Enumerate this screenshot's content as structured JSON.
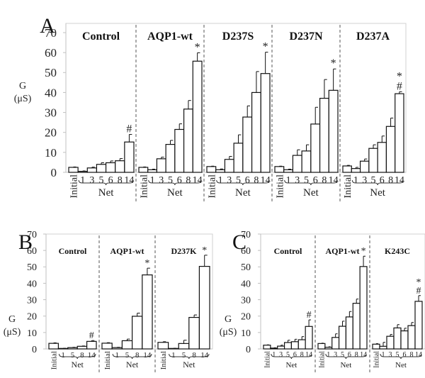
{
  "chart_data": [
    {
      "panel": "A",
      "type": "bar",
      "ylabel": "G (μS)",
      "ylim": [
        0,
        70
      ],
      "yticks": [
        0,
        10,
        20,
        30,
        40,
        50,
        60,
        70
      ],
      "categories": [
        "Initial",
        "1",
        "3",
        "5",
        "6",
        "8",
        "14"
      ],
      "bracket_label": "Net",
      "groups": [
        {
          "name": "Control",
          "values": [
            2.5,
            0.5,
            2.2,
            4.0,
            4.8,
            5.8,
            15.2
          ],
          "errors": [
            0.2,
            0.2,
            0.4,
            0.8,
            0.9,
            1.1,
            3.8
          ],
          "annotation": "#"
        },
        {
          "name": "AQP1-wt",
          "values": [
            2.5,
            1.3,
            6.8,
            14.0,
            21.5,
            31.7,
            55.7
          ],
          "errors": [
            0.2,
            0.3,
            0.8,
            2.0,
            2.8,
            4.3,
            4.2
          ],
          "annotation": "*"
        },
        {
          "name": "D237S",
          "values": [
            2.9,
            1.3,
            6.5,
            14.6,
            27.7,
            40.0,
            49.5
          ],
          "errors": [
            0.2,
            0.4,
            1.5,
            4.2,
            5.6,
            10.5,
            10.7
          ],
          "annotation": "*"
        },
        {
          "name": "D237N",
          "values": [
            2.9,
            1.3,
            8.5,
            10.7,
            24.2,
            37.1,
            41.1
          ],
          "errors": [
            0.2,
            0.3,
            2.8,
            3.1,
            8.4,
            9.4,
            10.7
          ],
          "annotation": "*"
        },
        {
          "name": "D237A",
          "values": [
            3.2,
            1.9,
            5.6,
            12.0,
            15.0,
            23.0,
            39.4
          ],
          "errors": [
            0.3,
            0.6,
            1.1,
            1.8,
            3.2,
            4.2,
            1.0
          ],
          "annotation": "*\n#"
        }
      ]
    },
    {
      "panel": "B",
      "type": "bar",
      "ylabel": "G (μS)",
      "ylim": [
        0,
        70
      ],
      "yticks": [
        0,
        10,
        20,
        30,
        40,
        50,
        60,
        70
      ],
      "categories": [
        "Initial",
        "1",
        "5",
        "8",
        "14"
      ],
      "bracket_label": "Net",
      "groups": [
        {
          "name": "Control",
          "values": [
            3.4,
            0.3,
            0.8,
            1.6,
            4.6
          ],
          "errors": [
            0.3,
            0.1,
            0.2,
            0.2,
            0.5
          ],
          "annotation": "#"
        },
        {
          "name": "AQP1-wt",
          "values": [
            3.5,
            0.8,
            5.0,
            19.9,
            45.1
          ],
          "errors": [
            0.3,
            0.2,
            1.0,
            1.9,
            4.1
          ],
          "annotation": "*"
        },
        {
          "name": "D237K",
          "values": [
            4.0,
            0.3,
            3.3,
            19.2,
            50.3
          ],
          "errors": [
            0.4,
            0.1,
            2.0,
            1.5,
            6.8
          ],
          "annotation": "*"
        }
      ]
    },
    {
      "panel": "C",
      "type": "bar",
      "ylabel": "G (μS)",
      "ylim": [
        0,
        70
      ],
      "yticks": [
        0,
        10,
        20,
        30,
        40,
        50,
        60,
        70
      ],
      "categories": [
        "Initial",
        "1",
        "3",
        "5",
        "6",
        "8",
        "14"
      ],
      "bracket_label": "Net",
      "groups": [
        {
          "name": "Control",
          "values": [
            2.3,
            0.5,
            1.7,
            3.9,
            4.4,
            5.6,
            13.7
          ],
          "errors": [
            0.2,
            0.2,
            0.6,
            1.4,
            1.5,
            1.9,
            4.0
          ],
          "annotation": "#"
        },
        {
          "name": "AQP1-wt",
          "values": [
            3.3,
            1.0,
            7.0,
            13.8,
            19.5,
            27.8,
            50.2
          ],
          "errors": [
            0.2,
            0.3,
            2.2,
            3.1,
            3.3,
            2.6,
            6.3
          ],
          "annotation": "*"
        },
        {
          "name": "K243C",
          "values": [
            2.9,
            1.6,
            7.7,
            12.8,
            11.0,
            14.2,
            29.0
          ],
          "errors": [
            0.3,
            2.4,
            1.1,
            2.0,
            1.6,
            1.9,
            3.5
          ],
          "annotation": "*\n#"
        }
      ]
    }
  ]
}
